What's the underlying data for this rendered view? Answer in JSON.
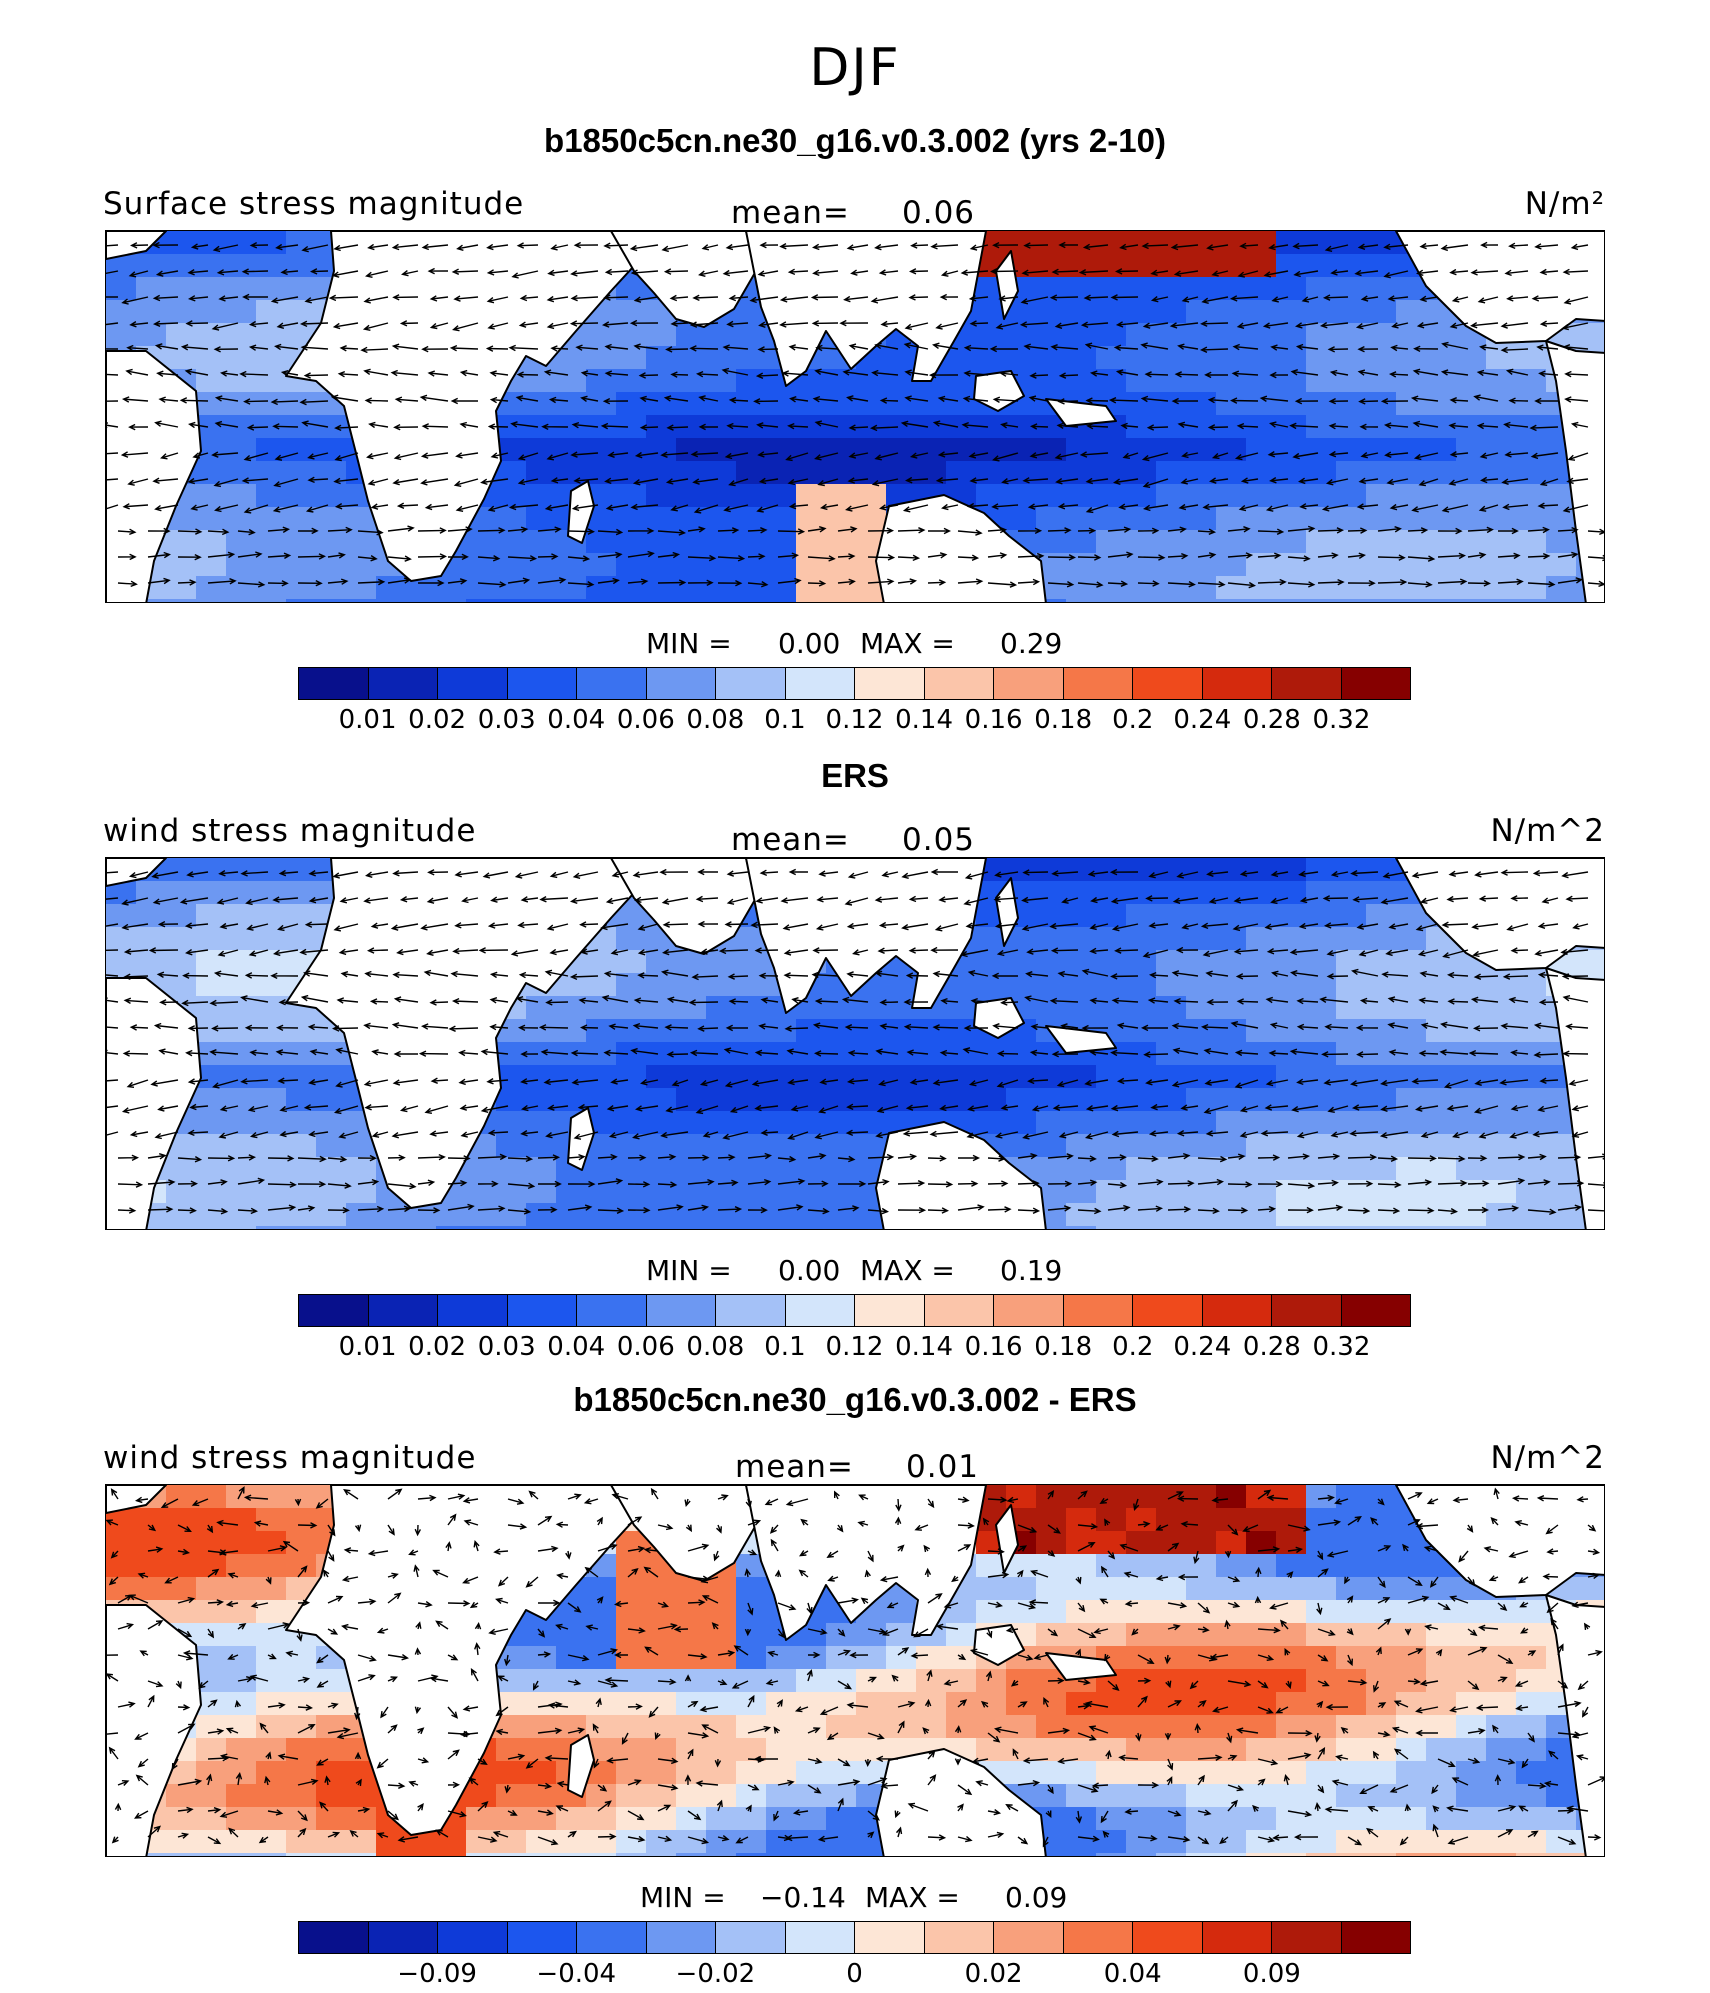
{
  "figure": {
    "title": "DJF"
  },
  "panels": [
    {
      "title": "b1850c5cn.ne30_g16.v0.3.002 (yrs 2-10)",
      "field": "Surface stress magnitude",
      "mean_label": "mean=",
      "mean": "0.06",
      "units": "N/m²",
      "stats": {
        "min_label": "MIN =",
        "min": "0.00",
        "max_label": "MAX =",
        "max": "0.29"
      },
      "colorbar": {
        "colors": [
          "#08108c",
          "#0a23b4",
          "#0e3ad8",
          "#1c56ee",
          "#3a72f0",
          "#6d98f2",
          "#a4c1f7",
          "#d3e5fb",
          "#fde6d6",
          "#fbc5aa",
          "#f8a07c",
          "#f57748",
          "#ef4a1c",
          "#d52a0d",
          "#ae1a0a",
          "#860000"
        ],
        "tick_labels": [
          "0.01",
          "0.02",
          "0.03",
          "0.04",
          "0.06",
          "0.08",
          "0.1",
          "0.12",
          "0.14",
          "0.16",
          "0.18",
          "0.2",
          "0.24",
          "0.28",
          "0.32"
        ]
      }
    },
    {
      "title": "ERS",
      "field": "wind stress magnitude",
      "mean_label": "mean=",
      "mean": "0.05",
      "units": "N/m^2",
      "stats": {
        "min_label": "MIN =",
        "min": "0.00",
        "max_label": "MAX =",
        "max": "0.19"
      },
      "colorbar": {
        "colors": [
          "#08108c",
          "#0a23b4",
          "#0e3ad8",
          "#1c56ee",
          "#3a72f0",
          "#6d98f2",
          "#a4c1f7",
          "#d3e5fb",
          "#fde6d6",
          "#fbc5aa",
          "#f8a07c",
          "#f57748",
          "#ef4a1c",
          "#d52a0d",
          "#ae1a0a",
          "#860000"
        ],
        "tick_labels": [
          "0.01",
          "0.02",
          "0.03",
          "0.04",
          "0.06",
          "0.08",
          "0.1",
          "0.12",
          "0.14",
          "0.16",
          "0.18",
          "0.2",
          "0.24",
          "0.28",
          "0.32"
        ]
      }
    },
    {
      "title": "b1850c5cn.ne30_g16.v0.3.002 - ERS",
      "field": "wind stress magnitude",
      "mean_label": "mean=",
      "mean": "0.01",
      "units": "N/m^2",
      "stats": {
        "min_label": "MIN =",
        "min": "−0.14",
        "max_label": "MAX =",
        "max": "0.09"
      },
      "colorbar": {
        "colors": [
          "#08108c",
          "#0a23b4",
          "#0e3ad8",
          "#1c56ee",
          "#3a72f0",
          "#6d98f2",
          "#a4c1f7",
          "#d3e5fb",
          "#fde6d6",
          "#fbc5aa",
          "#f8a07c",
          "#f57748",
          "#ef4a1c",
          "#d52a0d",
          "#ae1a0a",
          "#860000"
        ],
        "tick_labels": [
          "−0.09",
          "−0.04",
          "−0.02",
          "0",
          "0.02",
          "0.04",
          "0.09"
        ]
      }
    }
  ],
  "map_features": {
    "land_color": "#ffffff",
    "coastline_color": "#000000",
    "vector_color": "#000000"
  }
}
